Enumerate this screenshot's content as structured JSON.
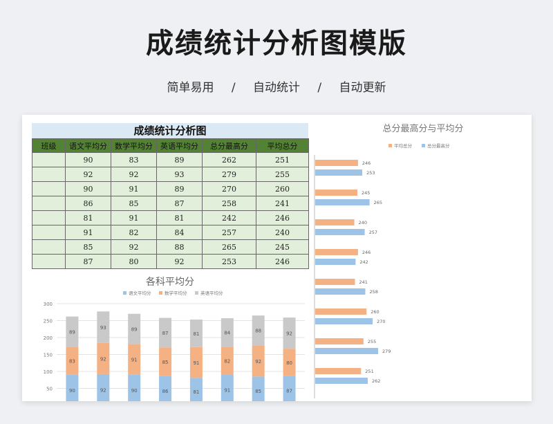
{
  "header": {
    "title": "成绩统计分析图模版",
    "tags": [
      "简单易用",
      "自动统计",
      "自动更新"
    ],
    "separator": "/"
  },
  "table": {
    "title": "成绩统计分析图",
    "headers": [
      "班级",
      "语文平均分",
      "数学平均分",
      "英语平均分",
      "总分最高分",
      "平均总分"
    ],
    "rows": [
      [
        "",
        "90",
        "83",
        "89",
        "262",
        "251"
      ],
      [
        "",
        "92",
        "92",
        "93",
        "279",
        "255"
      ],
      [
        "",
        "90",
        "91",
        "89",
        "270",
        "260"
      ],
      [
        "",
        "86",
        "85",
        "87",
        "258",
        "241"
      ],
      [
        "",
        "81",
        "91",
        "81",
        "242",
        "246"
      ],
      [
        "",
        "91",
        "82",
        "84",
        "257",
        "240"
      ],
      [
        "",
        "85",
        "92",
        "88",
        "265",
        "245"
      ],
      [
        "",
        "87",
        "80",
        "92",
        "253",
        "246"
      ]
    ]
  },
  "chart_data": [
    {
      "type": "bar",
      "stacked": true,
      "title": "各科平均分",
      "legend": "top",
      "categories": [
        "",
        "",
        "",
        "",
        "",
        "",
        "",
        ""
      ],
      "series": [
        {
          "name": "语文平均分",
          "color": "#9dc3e6",
          "values": [
            90,
            92,
            90,
            86,
            81,
            91,
            85,
            87
          ]
        },
        {
          "name": "数学平均分",
          "color": "#f4b183",
          "values": [
            83,
            92,
            91,
            85,
            91,
            82,
            92,
            80
          ]
        },
        {
          "name": "英语平均分",
          "color": "#c9c9c9",
          "values": [
            89,
            93,
            89,
            87,
            81,
            84,
            88,
            92
          ]
        }
      ],
      "yticks": [
        "50",
        "100",
        "150",
        "200",
        "250",
        "300"
      ],
      "ylim": [
        0,
        300
      ],
      "grid": true
    },
    {
      "type": "bar",
      "orientation": "horizontal",
      "title": "总分最高分与平均分",
      "legend": "top",
      "series": [
        {
          "name": "平均总分",
          "color": "#f4b183",
          "values": [
            246,
            245,
            240,
            246,
            241,
            260,
            255,
            251
          ]
        },
        {
          "name": "总分最高分",
          "color": "#9dc3e6",
          "values": [
            253,
            265,
            257,
            242,
            258,
            270,
            279,
            262
          ]
        }
      ],
      "xlim": [
        0,
        300
      ]
    }
  ]
}
